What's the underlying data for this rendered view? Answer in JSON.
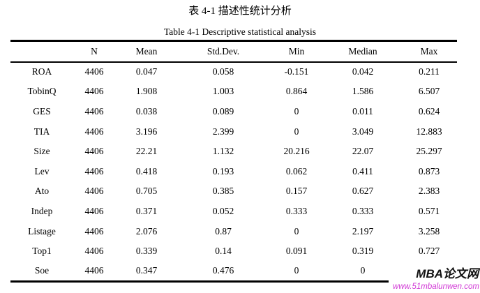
{
  "page": {
    "title_zh": "表 4-1  描述性统计分析",
    "title_en": "Table 4-1 Descriptive statistical analysis"
  },
  "table": {
    "columns": [
      "",
      "N",
      "Mean",
      "Std.Dev.",
      "Min",
      "Median",
      "Max"
    ],
    "rows": [
      {
        "label": "ROA",
        "values": [
          "4406",
          "0.047",
          "0.058",
          "-0.151",
          "0.042",
          "0.211"
        ]
      },
      {
        "label": "TobinQ",
        "values": [
          "4406",
          "1.908",
          "1.003",
          "0.864",
          "1.586",
          "6.507"
        ]
      },
      {
        "label": "GES",
        "values": [
          "4406",
          "0.038",
          "0.089",
          "0",
          "0.011",
          "0.624"
        ]
      },
      {
        "label": "TIA",
        "values": [
          "4406",
          "3.196",
          "2.399",
          "0",
          "3.049",
          "12.883"
        ]
      },
      {
        "label": "Size",
        "values": [
          "4406",
          "22.21",
          "1.132",
          "20.216",
          "22.07",
          "25.297"
        ]
      },
      {
        "label": "Lev",
        "values": [
          "4406",
          "0.418",
          "0.193",
          "0.062",
          "0.411",
          "0.873"
        ]
      },
      {
        "label": "Ato",
        "values": [
          "4406",
          "0.705",
          "0.385",
          "0.157",
          "0.627",
          "2.383"
        ]
      },
      {
        "label": "Indep",
        "values": [
          "4406",
          "0.371",
          "0.052",
          "0.333",
          "0.333",
          "0.571"
        ]
      },
      {
        "label": "Listage",
        "values": [
          "4406",
          "2.076",
          "0.87",
          "0",
          "2.197",
          "3.258"
        ]
      },
      {
        "label": "Top1",
        "values": [
          "4406",
          "0.339",
          "0.14",
          "0.091",
          "0.319",
          "0.727"
        ]
      },
      {
        "label": "Soe",
        "values": [
          "4406",
          "0.347",
          "0.476",
          "0",
          "0",
          ""
        ]
      }
    ]
  },
  "watermark": {
    "brand": "MBA论文网",
    "url": "www.51mbalunwen.com",
    "brand_color": "#121212",
    "url_color": "#d23ad6"
  }
}
